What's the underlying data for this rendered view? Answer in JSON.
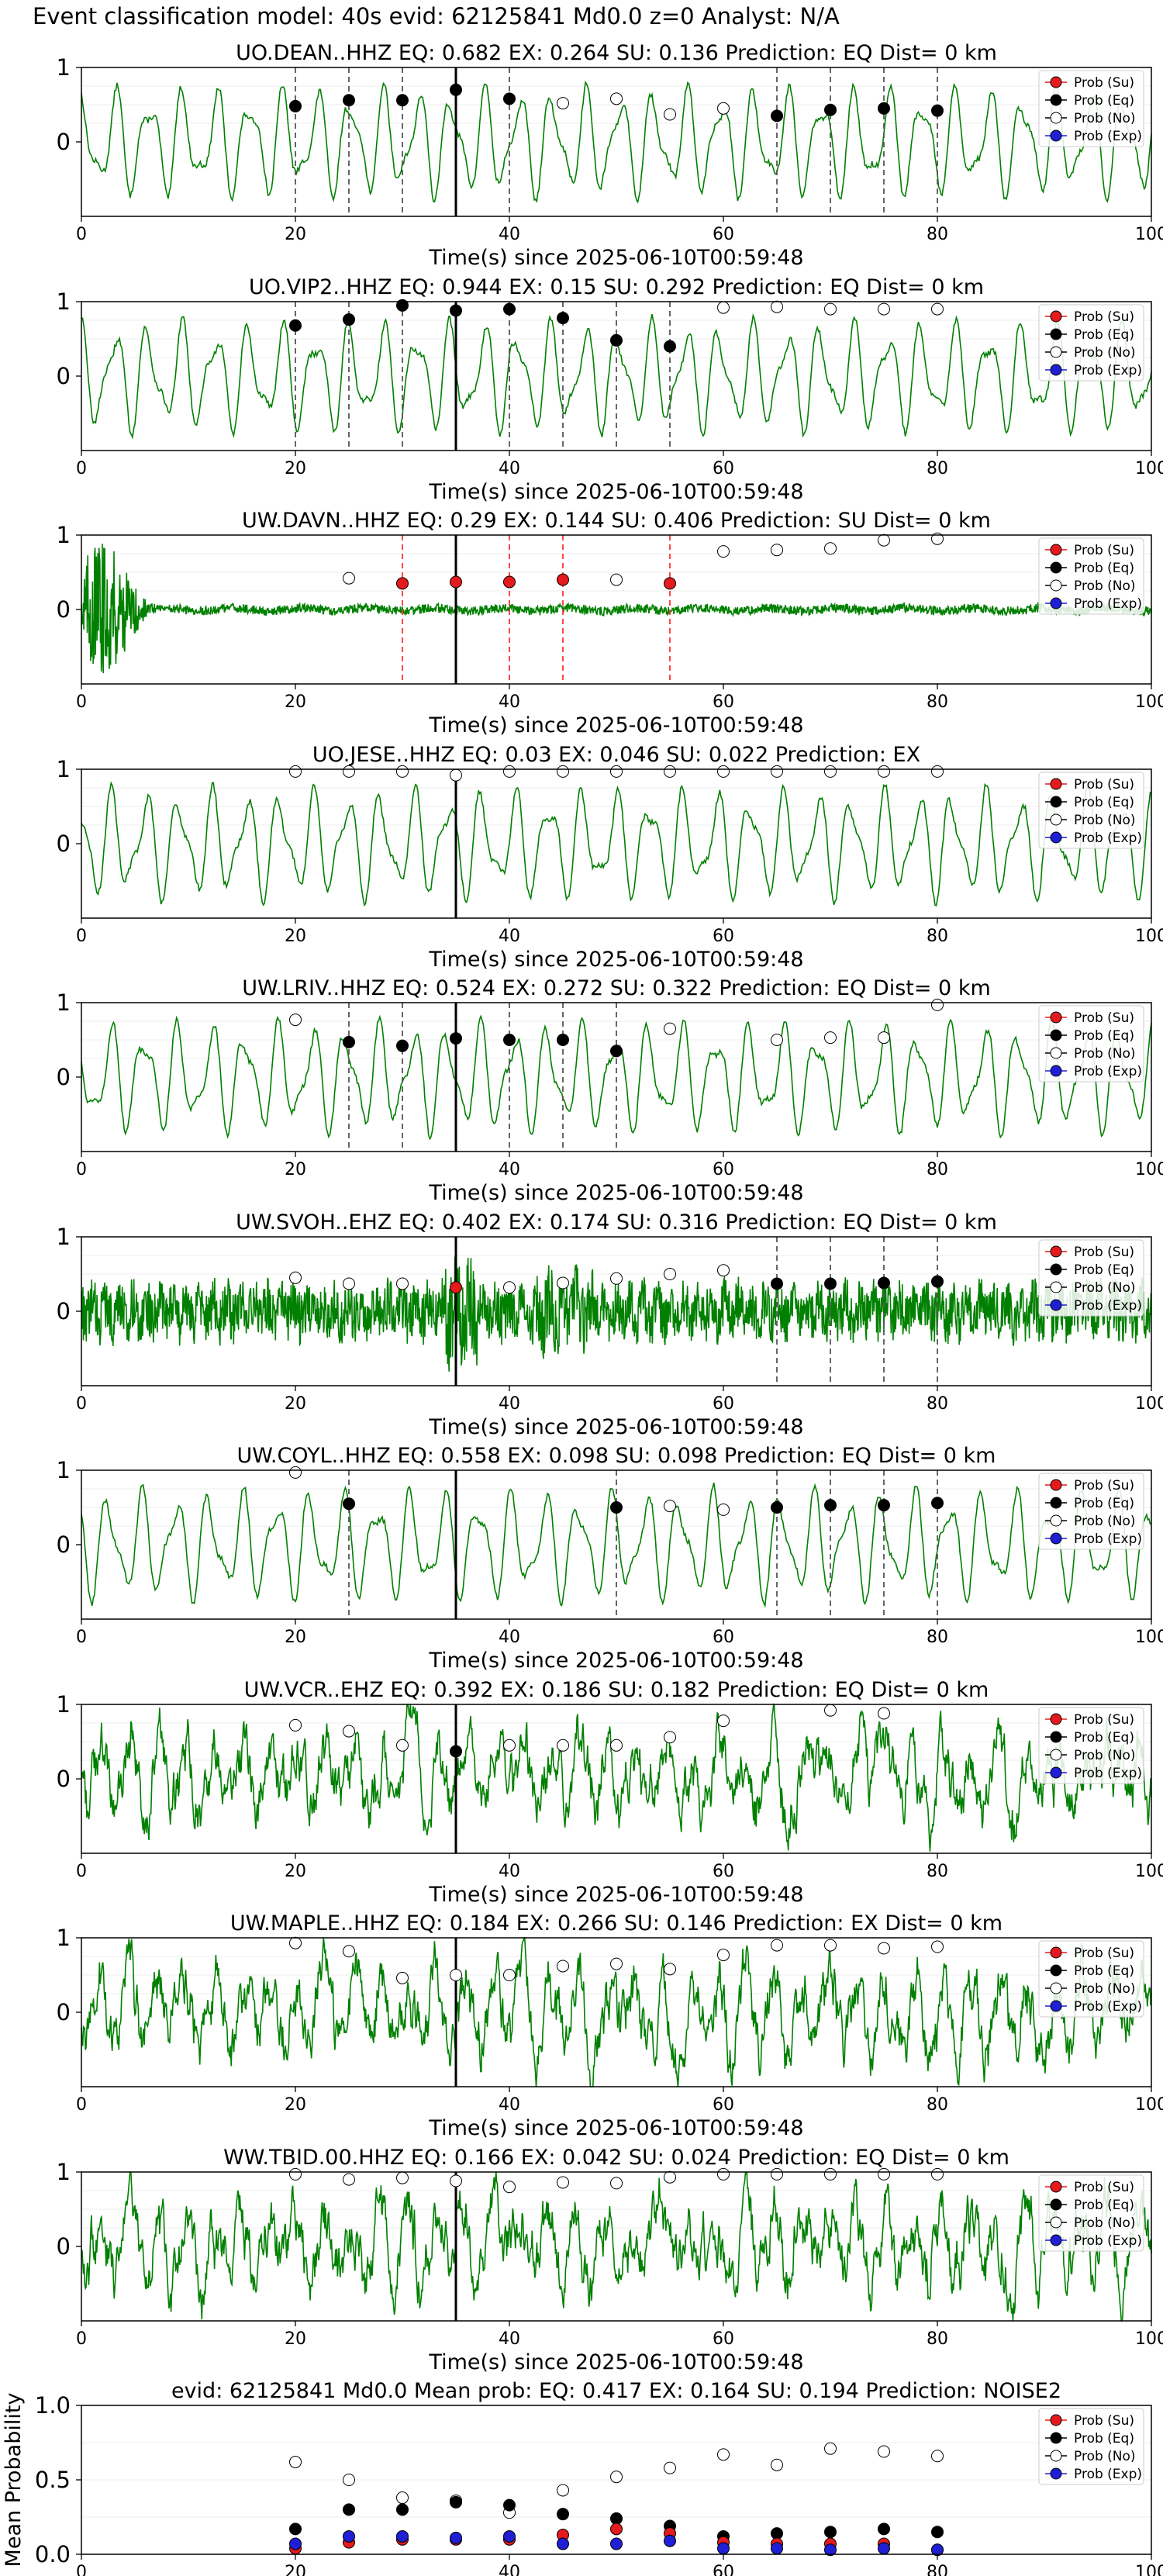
{
  "figure": {
    "title": "Event classification model: 40s evid: 62125841 Md0.0 z=0 Analyst: N/A",
    "x_label": "Time(s) since 2025-06-10T00:59:48",
    "x_ticks": [
      0,
      20,
      40,
      60,
      80,
      100
    ],
    "legend": [
      "Prob (Su)",
      "Prob (Eq)",
      "Prob (No)",
      "Prob (Exp)"
    ],
    "colors": {
      "su": "#e41a1c",
      "eq": "#000000",
      "no": "#ffffff",
      "exp": "#1f1fd6",
      "waveform": "#008000",
      "origin_line": "#000000",
      "eq_pick": "#555555",
      "su_pick": "#ff3333"
    }
  },
  "chart_data": [
    {
      "type": "line",
      "station": "UO.DEAN..HHZ",
      "title": "UO.DEAN..HHZ   EQ: 0.682  EX: 0.264  SU: 0.136   Prediction: EQ    Dist= 0 km",
      "xlim": [
        0,
        100
      ],
      "ylim": [
        -1,
        1
      ],
      "y_ticks": [
        0,
        1
      ],
      "origin_time": 35,
      "waveform_style": "smooth",
      "probs_eq": [
        {
          "t": 20,
          "p": 0.48
        },
        {
          "t": 25,
          "p": 0.56
        },
        {
          "t": 30,
          "p": 0.56
        },
        {
          "t": 35,
          "p": 0.7
        },
        {
          "t": 40,
          "p": 0.58
        },
        {
          "t": 65,
          "p": 0.35
        },
        {
          "t": 70,
          "p": 0.43
        },
        {
          "t": 75,
          "p": 0.45
        },
        {
          "t": 80,
          "p": 0.42
        }
      ],
      "probs_su": [],
      "probs_no": [
        {
          "t": 45,
          "p": 0.52
        },
        {
          "t": 50,
          "p": 0.58
        },
        {
          "t": 55,
          "p": 0.37
        },
        {
          "t": 60,
          "p": 0.45
        }
      ],
      "pick_lines": [
        {
          "t": 20,
          "kind": "eq"
        },
        {
          "t": 25,
          "kind": "eq"
        },
        {
          "t": 30,
          "kind": "eq"
        },
        {
          "t": 40,
          "kind": "eq"
        },
        {
          "t": 65,
          "kind": "eq"
        },
        {
          "t": 70,
          "kind": "eq"
        },
        {
          "t": 75,
          "kind": "eq"
        },
        {
          "t": 80,
          "kind": "eq"
        }
      ]
    },
    {
      "type": "line",
      "station": "UO.VIP2..HHZ",
      "title": "UO.VIP2..HHZ   EQ: 0.944  EX: 0.15  SU: 0.292   Prediction: EQ    Dist= 0 km",
      "xlim": [
        0,
        100
      ],
      "ylim": [
        -1,
        1
      ],
      "y_ticks": [
        0,
        1
      ],
      "origin_time": 35,
      "waveform_style": "smooth",
      "probs_eq": [
        {
          "t": 20,
          "p": 0.68
        },
        {
          "t": 25,
          "p": 0.76
        },
        {
          "t": 30,
          "p": 0.95
        },
        {
          "t": 35,
          "p": 0.88
        },
        {
          "t": 40,
          "p": 0.9
        },
        {
          "t": 45,
          "p": 0.78
        },
        {
          "t": 50,
          "p": 0.48
        },
        {
          "t": 55,
          "p": 0.4
        }
      ],
      "probs_su": [],
      "probs_no": [
        {
          "t": 60,
          "p": 0.92
        },
        {
          "t": 65,
          "p": 0.93
        },
        {
          "t": 70,
          "p": 0.9
        },
        {
          "t": 75,
          "p": 0.9
        },
        {
          "t": 80,
          "p": 0.9
        }
      ],
      "pick_lines": [
        {
          "t": 20,
          "kind": "eq"
        },
        {
          "t": 25,
          "kind": "eq"
        },
        {
          "t": 30,
          "kind": "eq"
        },
        {
          "t": 40,
          "kind": "eq"
        },
        {
          "t": 45,
          "kind": "eq"
        },
        {
          "t": 50,
          "kind": "eq"
        },
        {
          "t": 55,
          "kind": "eq"
        }
      ]
    },
    {
      "type": "line",
      "station": "UW.DAVN..HHZ",
      "title": "UW.DAVN..HHZ   EQ: 0.29  EX: 0.144  SU: 0.406   Prediction: SU    Dist= 0 km",
      "xlim": [
        0,
        100
      ],
      "ylim": [
        -1,
        1
      ],
      "y_ticks": [
        0,
        1
      ],
      "origin_time": 35,
      "waveform_style": "burst",
      "probs_eq": [],
      "probs_su": [
        {
          "t": 30,
          "p": 0.35
        },
        {
          "t": 35,
          "p": 0.37
        },
        {
          "t": 40,
          "p": 0.37
        },
        {
          "t": 45,
          "p": 0.4
        },
        {
          "t": 55,
          "p": 0.35
        }
      ],
      "probs_no": [
        {
          "t": 25,
          "p": 0.42
        },
        {
          "t": 50,
          "p": 0.4
        },
        {
          "t": 60,
          "p": 0.78
        },
        {
          "t": 65,
          "p": 0.8
        },
        {
          "t": 70,
          "p": 0.82
        },
        {
          "t": 75,
          "p": 0.93
        },
        {
          "t": 80,
          "p": 0.95
        }
      ],
      "pick_lines": [
        {
          "t": 30,
          "kind": "su"
        },
        {
          "t": 40,
          "kind": "su"
        },
        {
          "t": 45,
          "kind": "su"
        },
        {
          "t": 55,
          "kind": "su"
        }
      ]
    },
    {
      "type": "line",
      "station": "UO.JESE..HHZ",
      "title": "UO.JESE..HHZ   EQ: 0.03  EX: 0.046  SU: 0.022   Prediction: EX",
      "xlim": [
        0,
        100
      ],
      "ylim": [
        -1,
        1
      ],
      "y_ticks": [
        0,
        1
      ],
      "origin_time": 35,
      "waveform_style": "smooth",
      "probs_eq": [],
      "probs_su": [],
      "probs_no": [
        {
          "t": 20,
          "p": 0.97
        },
        {
          "t": 25,
          "p": 0.97
        },
        {
          "t": 30,
          "p": 0.97
        },
        {
          "t": 35,
          "p": 0.92
        },
        {
          "t": 40,
          "p": 0.97
        },
        {
          "t": 45,
          "p": 0.97
        },
        {
          "t": 50,
          "p": 0.97
        },
        {
          "t": 55,
          "p": 0.97
        },
        {
          "t": 60,
          "p": 0.97
        },
        {
          "t": 65,
          "p": 0.97
        },
        {
          "t": 70,
          "p": 0.97
        },
        {
          "t": 75,
          "p": 0.97
        },
        {
          "t": 80,
          "p": 0.97
        }
      ],
      "pick_lines": []
    },
    {
      "type": "line",
      "station": "UW.LRIV..HHZ",
      "title": "UW.LRIV..HHZ   EQ: 0.524  EX: 0.272  SU: 0.322   Prediction: EQ    Dist= 0 km",
      "xlim": [
        0,
        100
      ],
      "ylim": [
        -1,
        1
      ],
      "y_ticks": [
        0,
        1
      ],
      "origin_time": 35,
      "waveform_style": "smooth",
      "probs_eq": [
        {
          "t": 25,
          "p": 0.47
        },
        {
          "t": 30,
          "p": 0.42
        },
        {
          "t": 35,
          "p": 0.52
        },
        {
          "t": 40,
          "p": 0.5
        },
        {
          "t": 45,
          "p": 0.5
        },
        {
          "t": 50,
          "p": 0.35
        }
      ],
      "probs_su": [],
      "probs_no": [
        {
          "t": 20,
          "p": 0.77
        },
        {
          "t": 55,
          "p": 0.65
        },
        {
          "t": 65,
          "p": 0.5
        },
        {
          "t": 70,
          "p": 0.53
        },
        {
          "t": 75,
          "p": 0.53
        },
        {
          "t": 80,
          "p": 0.97
        }
      ],
      "pick_lines": [
        {
          "t": 25,
          "kind": "eq"
        },
        {
          "t": 30,
          "kind": "eq"
        },
        {
          "t": 40,
          "kind": "eq"
        },
        {
          "t": 45,
          "kind": "eq"
        },
        {
          "t": 50,
          "kind": "eq"
        }
      ]
    },
    {
      "type": "line",
      "station": "UW.SVOH..EHZ",
      "title": "UW.SVOH..EHZ   EQ: 0.402  EX: 0.174  SU: 0.316   Prediction: EQ    Dist= 0 km",
      "xlim": [
        0,
        100
      ],
      "ylim": [
        -1,
        1
      ],
      "y_ticks": [
        0,
        1
      ],
      "origin_time": 35,
      "waveform_style": "noisy",
      "probs_eq": [
        {
          "t": 65,
          "p": 0.37
        },
        {
          "t": 70,
          "p": 0.37
        },
        {
          "t": 75,
          "p": 0.38
        },
        {
          "t": 80,
          "p": 0.4
        }
      ],
      "probs_su": [
        {
          "t": 35,
          "p": 0.32
        }
      ],
      "probs_no": [
        {
          "t": 20,
          "p": 0.45
        },
        {
          "t": 25,
          "p": 0.37
        },
        {
          "t": 30,
          "p": 0.37
        },
        {
          "t": 40,
          "p": 0.32
        },
        {
          "t": 45,
          "p": 0.38
        },
        {
          "t": 50,
          "p": 0.44
        },
        {
          "t": 55,
          "p": 0.5
        },
        {
          "t": 60,
          "p": 0.55
        }
      ],
      "pick_lines": [
        {
          "t": 65,
          "kind": "eq"
        },
        {
          "t": 70,
          "kind": "eq"
        },
        {
          "t": 75,
          "kind": "eq"
        },
        {
          "t": 80,
          "kind": "eq"
        }
      ]
    },
    {
      "type": "line",
      "station": "UW.COYL..HHZ",
      "title": "UW.COYL..HHZ   EQ: 0.558  EX: 0.098  SU: 0.098   Prediction: EQ    Dist= 0 km",
      "xlim": [
        0,
        100
      ],
      "ylim": [
        -1,
        1
      ],
      "y_ticks": [
        0,
        1
      ],
      "origin_time": 35,
      "waveform_style": "smooth",
      "probs_eq": [
        {
          "t": 25,
          "p": 0.55
        },
        {
          "t": 50,
          "p": 0.5
        },
        {
          "t": 65,
          "p": 0.5
        },
        {
          "t": 70,
          "p": 0.53
        },
        {
          "t": 75,
          "p": 0.53
        },
        {
          "t": 80,
          "p": 0.56
        }
      ],
      "probs_su": [],
      "probs_no": [
        {
          "t": 20,
          "p": 0.97
        },
        {
          "t": 55,
          "p": 0.52
        },
        {
          "t": 60,
          "p": 0.47
        }
      ],
      "pick_lines": [
        {
          "t": 25,
          "kind": "eq"
        },
        {
          "t": 50,
          "kind": "eq"
        },
        {
          "t": 65,
          "kind": "eq"
        },
        {
          "t": 70,
          "kind": "eq"
        },
        {
          "t": 75,
          "kind": "eq"
        },
        {
          "t": 80,
          "kind": "eq"
        }
      ]
    },
    {
      "type": "line",
      "station": "UW.VCR..EHZ",
      "title": "UW.VCR..EHZ   EQ: 0.392  EX: 0.186  SU: 0.182   Prediction: EQ    Dist= 0 km",
      "xlim": [
        0,
        100
      ],
      "ylim": [
        -1,
        1
      ],
      "y_ticks": [
        0,
        1
      ],
      "origin_time": 35,
      "waveform_style": "rough",
      "probs_eq": [
        {
          "t": 35,
          "p": 0.37
        }
      ],
      "probs_su": [],
      "probs_no": [
        {
          "t": 20,
          "p": 0.72
        },
        {
          "t": 25,
          "p": 0.64
        },
        {
          "t": 30,
          "p": 0.45
        },
        {
          "t": 40,
          "p": 0.45
        },
        {
          "t": 45,
          "p": 0.45
        },
        {
          "t": 50,
          "p": 0.45
        },
        {
          "t": 55,
          "p": 0.56
        },
        {
          "t": 60,
          "p": 0.78
        },
        {
          "t": 70,
          "p": 0.92
        },
        {
          "t": 75,
          "p": 0.88
        }
      ],
      "pick_lines": []
    },
    {
      "type": "line",
      "station": "UW.MAPLE..HHZ",
      "title": "UW.MAPLE..HHZ   EQ: 0.184  EX: 0.266  SU: 0.146   Prediction: EX    Dist= 0 km",
      "xlim": [
        0,
        100
      ],
      "ylim": [
        -1,
        1
      ],
      "y_ticks": [
        0,
        1
      ],
      "origin_time": 35,
      "waveform_style": "rough",
      "probs_eq": [],
      "probs_su": [],
      "probs_no": [
        {
          "t": 20,
          "p": 0.93
        },
        {
          "t": 25,
          "p": 0.82
        },
        {
          "t": 30,
          "p": 0.46
        },
        {
          "t": 35,
          "p": 0.5
        },
        {
          "t": 40,
          "p": 0.5
        },
        {
          "t": 45,
          "p": 0.62
        },
        {
          "t": 50,
          "p": 0.65
        },
        {
          "t": 55,
          "p": 0.58
        },
        {
          "t": 60,
          "p": 0.77
        },
        {
          "t": 65,
          "p": 0.9
        },
        {
          "t": 70,
          "p": 0.9
        },
        {
          "t": 75,
          "p": 0.86
        },
        {
          "t": 80,
          "p": 0.88
        }
      ],
      "pick_lines": []
    },
    {
      "type": "line",
      "station": "WW.TBID.00.HHZ",
      "title": "WW.TBID.00.HHZ   EQ: 0.166  EX: 0.042  SU: 0.024   Prediction: EQ    Dist= 0 km",
      "xlim": [
        0,
        100
      ],
      "ylim": [
        -1,
        1
      ],
      "y_ticks": [
        0,
        1
      ],
      "origin_time": 35,
      "waveform_style": "rough",
      "probs_eq": [],
      "probs_su": [],
      "probs_no": [
        {
          "t": 20,
          "p": 0.97
        },
        {
          "t": 25,
          "p": 0.9
        },
        {
          "t": 30,
          "p": 0.92
        },
        {
          "t": 35,
          "p": 0.88
        },
        {
          "t": 40,
          "p": 0.8
        },
        {
          "t": 45,
          "p": 0.86
        },
        {
          "t": 50,
          "p": 0.85
        },
        {
          "t": 55,
          "p": 0.93
        },
        {
          "t": 60,
          "p": 0.97
        },
        {
          "t": 65,
          "p": 0.97
        },
        {
          "t": 70,
          "p": 0.97
        },
        {
          "t": 75,
          "p": 0.97
        },
        {
          "t": 80,
          "p": 0.97
        }
      ],
      "pick_lines": []
    },
    {
      "type": "scatter",
      "title": "evid: 62125841  Md0.0   Mean prob:   EQ: 0.417  EX: 0.164  SU: 0.194   Prediction: NOISE2",
      "ylabel": "Mean Probability",
      "xlim": [
        0,
        100
      ],
      "ylim": [
        0,
        1
      ],
      "y_ticks": [
        0.0,
        0.5,
        1.0
      ],
      "x": [
        20,
        25,
        30,
        35,
        40,
        45,
        50,
        55,
        60,
        65,
        70,
        75,
        80
      ],
      "series": [
        {
          "name": "Prob (Su)",
          "values": [
            0.04,
            0.08,
            0.1,
            0.1,
            0.1,
            0.13,
            0.17,
            0.14,
            0.08,
            0.07,
            0.07,
            0.07,
            0.03
          ]
        },
        {
          "name": "Prob (Eq)",
          "values": [
            0.17,
            0.3,
            0.3,
            0.35,
            0.33,
            0.27,
            0.24,
            0.19,
            0.12,
            0.14,
            0.15,
            0.17,
            0.15
          ]
        },
        {
          "name": "Prob (No)",
          "values": [
            0.62,
            0.5,
            0.38,
            0.36,
            0.28,
            0.43,
            0.52,
            0.58,
            0.67,
            0.6,
            0.71,
            0.69,
            0.66
          ]
        },
        {
          "name": "Prob (Exp)",
          "values": [
            0.07,
            0.12,
            0.12,
            0.11,
            0.12,
            0.07,
            0.07,
            0.09,
            0.04,
            0.04,
            0.03,
            0.04,
            0.03
          ]
        }
      ]
    }
  ]
}
